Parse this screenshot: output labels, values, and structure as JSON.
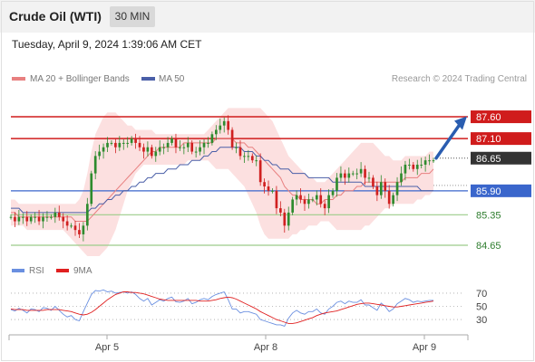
{
  "header": {
    "title": "Crude Oil (WTI)",
    "timeframe": "30 MIN",
    "datetime": "Tuesday, April 9, 2024 1:39:06 AM CET"
  },
  "legend": {
    "ma20_label": "MA 20 + Bollinger Bands",
    "ma50_label": "MA 50",
    "source": "Research © 2024 Trading Central",
    "rsi_label": "RSI",
    "ma9_label": "9MA"
  },
  "colors": {
    "resistance": "#d01c1c",
    "support_strong": "#3a66cc",
    "support": "#9ccc8a",
    "current": "#333333",
    "ma20": "#e88080",
    "ma50": "#4a5fa8",
    "bollinger_fill": "#fbd5d5",
    "rsi": "#6a8fe0",
    "rsi_ma": "#e02020",
    "up_candle": "#2e8b2e",
    "down_candle": "#d02020",
    "arrow": "#2a5db0"
  },
  "chart_data": {
    "type": "candlestick",
    "ylim": [
      84.4,
      88.1
    ],
    "x_ticks": [
      "Apr 5",
      "Apr 8",
      "Apr 9"
    ],
    "levels": [
      {
        "value": 87.6,
        "label": "87.60",
        "kind": "resistance"
      },
      {
        "value": 87.1,
        "label": "87.10",
        "kind": "resistance"
      },
      {
        "value": 86.65,
        "label": "86.65",
        "kind": "current"
      },
      {
        "value": 85.9,
        "label": "85.90",
        "kind": "support_strong"
      },
      {
        "value": 85.35,
        "label": "85.35",
        "kind": "support"
      },
      {
        "value": 84.65,
        "label": "84.65",
        "kind": "support"
      }
    ],
    "close": [
      85.3,
      85.2,
      85.3,
      85.3,
      85.2,
      85.3,
      85.3,
      85.2,
      85.3,
      85.3,
      85.3,
      85.4,
      85.3,
      85.2,
      85.1,
      85.1,
      85.0,
      84.9,
      85.1,
      85.6,
      86.3,
      86.7,
      86.8,
      86.9,
      87.0,
      87.0,
      86.9,
      87.0,
      87.0,
      87.0,
      87.1,
      87.0,
      86.9,
      86.8,
      86.9,
      86.7,
      86.8,
      86.9,
      86.9,
      87.0,
      87.1,
      86.9,
      86.9,
      86.9,
      87.0,
      86.8,
      86.8,
      86.9,
      87.0,
      87.0,
      87.2,
      87.3,
      87.4,
      87.5,
      87.3,
      86.9,
      86.9,
      86.7,
      86.7,
      86.7,
      86.6,
      86.6,
      86.1,
      86.0,
      85.9,
      85.9,
      85.5,
      85.4,
      85.1,
      85.4,
      85.7,
      85.8,
      85.7,
      85.6,
      85.7,
      85.7,
      85.8,
      85.6,
      85.5,
      85.8,
      85.9,
      86.2,
      86.3,
      86.2,
      86.3,
      86.3,
      86.3,
      86.4,
      86.2,
      86.2,
      86.0,
      85.8,
      86.1,
      85.9,
      85.6,
      85.8,
      86.1,
      86.3,
      86.5,
      86.5,
      86.4,
      86.5,
      86.5,
      86.6,
      86.6,
      86.6
    ],
    "ma20": [
      85.4,
      85.4,
      85.3,
      85.3,
      85.3,
      85.3,
      85.3,
      85.3,
      85.3,
      85.3,
      85.3,
      85.3,
      85.3,
      85.3,
      85.3,
      85.3,
      85.2,
      85.2,
      85.2,
      85.2,
      85.3,
      85.4,
      85.5,
      85.6,
      85.7,
      85.8,
      85.9,
      86.0,
      86.1,
      86.2,
      86.3,
      86.4,
      86.5,
      86.6,
      86.7,
      86.8,
      86.8,
      86.9,
      86.9,
      86.9,
      86.9,
      86.9,
      86.9,
      87.0,
      87.0,
      87.0,
      87.0,
      87.0,
      87.0,
      87.0,
      87.0,
      87.1,
      87.1,
      87.1,
      87.1,
      87.1,
      87.0,
      87.0,
      87.0,
      86.9,
      86.9,
      86.8,
      86.7,
      86.6,
      86.5,
      86.4,
      86.3,
      86.2,
      86.0,
      85.9,
      85.8,
      85.8,
      85.7,
      85.7,
      85.7,
      85.7,
      85.6,
      85.6,
      85.7,
      85.7,
      85.7,
      85.8,
      85.8,
      85.9,
      85.9,
      85.9,
      86.0,
      86.0,
      86.1,
      86.1,
      86.1,
      86.1,
      86.1,
      86.1,
      86.1,
      86.1,
      86.1,
      86.1,
      86.2,
      86.2,
      86.2,
      86.2,
      86.3,
      86.3,
      86.3,
      86.4
    ],
    "ma50": [
      85.5,
      85.5,
      85.5,
      85.4,
      85.4,
      85.4,
      85.4,
      85.4,
      85.4,
      85.4,
      85.4,
      85.4,
      85.4,
      85.4,
      85.4,
      85.4,
      85.4,
      85.4,
      85.4,
      85.4,
      85.5,
      85.5,
      85.6,
      85.6,
      85.7,
      85.7,
      85.8,
      85.8,
      85.9,
      85.9,
      86.0,
      86.0,
      86.1,
      86.1,
      86.2,
      86.2,
      86.3,
      86.3,
      86.3,
      86.4,
      86.4,
      86.4,
      86.5,
      86.5,
      86.5,
      86.6,
      86.6,
      86.6,
      86.7,
      86.7,
      86.8,
      86.8,
      86.9,
      86.9,
      86.9,
      86.9,
      86.9,
      86.9,
      86.8,
      86.8,
      86.8,
      86.7,
      86.7,
      86.6,
      86.6,
      86.5,
      86.5,
      86.4,
      86.4,
      86.4,
      86.3,
      86.3,
      86.3,
      86.3,
      86.2,
      86.2,
      86.2,
      86.2,
      86.2,
      86.2,
      86.1,
      86.1,
      86.1,
      86.1,
      86.1,
      86.1,
      86.1,
      86.1,
      86.0,
      86.0,
      86.0,
      86.0,
      86.0,
      86.0,
      86.0,
      86.0,
      86.0,
      86.0,
      86.0,
      86.0,
      86.0,
      86.0,
      85.9,
      85.9,
      85.9,
      85.9
    ],
    "bb_upper": [
      85.7,
      85.7,
      85.6,
      85.6,
      85.6,
      85.6,
      85.6,
      85.6,
      85.6,
      85.6,
      85.6,
      85.6,
      85.6,
      85.6,
      85.6,
      85.6,
      85.6,
      85.7,
      85.9,
      86.3,
      86.8,
      87.2,
      87.4,
      87.6,
      87.7,
      87.7,
      87.7,
      87.6,
      87.5,
      87.4,
      87.4,
      87.3,
      87.3,
      87.3,
      87.3,
      87.3,
      87.2,
      87.2,
      87.2,
      87.2,
      87.2,
      87.2,
      87.2,
      87.2,
      87.2,
      87.2,
      87.2,
      87.2,
      87.2,
      87.3,
      87.4,
      87.5,
      87.6,
      87.7,
      87.8,
      87.8,
      87.8,
      87.8,
      87.8,
      87.8,
      87.8,
      87.8,
      87.8,
      87.7,
      87.6,
      87.5,
      87.3,
      87.1,
      86.9,
      86.7,
      86.6,
      86.5,
      86.4,
      86.3,
      86.2,
      86.2,
      86.1,
      86.1,
      86.1,
      86.2,
      86.3,
      86.4,
      86.5,
      86.6,
      86.7,
      86.8,
      86.9,
      87.0,
      87.0,
      87.0,
      87.0,
      86.9,
      86.8,
      86.7,
      86.7,
      86.6,
      86.6,
      86.6,
      86.7,
      86.7,
      86.7,
      86.7,
      86.7,
      86.7,
      86.8,
      86.8
    ],
    "bb_lower": [
      85.1,
      85.1,
      85.1,
      85.1,
      85.0,
      85.0,
      85.0,
      85.0,
      85.0,
      85.0,
      85.0,
      85.0,
      85.0,
      85.0,
      84.9,
      84.8,
      84.7,
      84.6,
      84.5,
      84.4,
      84.4,
      84.4,
      84.4,
      84.5,
      84.6,
      84.8,
      85.0,
      85.3,
      85.6,
      85.9,
      86.1,
      86.3,
      86.4,
      86.5,
      86.5,
      86.5,
      86.5,
      86.5,
      86.5,
      86.5,
      86.5,
      86.5,
      86.5,
      86.5,
      86.6,
      86.6,
      86.6,
      86.6,
      86.6,
      86.6,
      86.5,
      86.4,
      86.4,
      86.4,
      86.4,
      86.3,
      86.2,
      86.1,
      86.0,
      85.8,
      85.6,
      85.4,
      85.1,
      84.9,
      84.8,
      84.8,
      84.8,
      84.8,
      84.8,
      84.8,
      84.9,
      84.9,
      85.0,
      85.0,
      85.1,
      85.1,
      85.1,
      85.2,
      85.2,
      85.2,
      85.1,
      85.0,
      85.0,
      85.0,
      85.0,
      85.0,
      85.0,
      85.0,
      85.1,
      85.1,
      85.2,
      85.3,
      85.4,
      85.5,
      85.5,
      85.6,
      85.6,
      85.6,
      85.6,
      85.6,
      85.6,
      85.7,
      85.7,
      85.8,
      85.8,
      85.9
    ],
    "rsi": {
      "ylim": [
        15,
        85
      ],
      "levels": [
        70,
        50,
        30
      ],
      "values": [
        45,
        43,
        47,
        44,
        40,
        46,
        45,
        42,
        48,
        47,
        44,
        50,
        44,
        38,
        34,
        36,
        30,
        28,
        42,
        55,
        68,
        74,
        73,
        75,
        72,
        73,
        70,
        71,
        72,
        70,
        72,
        68,
        62,
        58,
        62,
        52,
        56,
        60,
        58,
        62,
        64,
        57,
        56,
        58,
        62,
        54,
        56,
        60,
        62,
        60,
        65,
        68,
        70,
        72,
        60,
        46,
        46,
        40,
        42,
        42,
        40,
        38,
        30,
        28,
        26,
        24,
        22,
        22,
        20,
        32,
        40,
        44,
        40,
        38,
        42,
        42,
        46,
        40,
        38,
        46,
        50,
        56,
        58,
        54,
        58,
        56,
        56,
        60,
        52,
        52,
        48,
        44,
        55,
        50,
        42,
        46,
        54,
        58,
        62,
        60,
        56,
        58,
        57,
        58,
        59,
        59
      ],
      "ma9": [
        46,
        45,
        45,
        45,
        44,
        44,
        44,
        44,
        44,
        45,
        45,
        45,
        45,
        44,
        43,
        42,
        40,
        38,
        37,
        38,
        41,
        45,
        50,
        55,
        60,
        64,
        68,
        70,
        72,
        72,
        71,
        71,
        70,
        69,
        67,
        65,
        63,
        61,
        60,
        59,
        59,
        59,
        59,
        59,
        59,
        59,
        59,
        58,
        58,
        58,
        59,
        60,
        62,
        63,
        64,
        63,
        61,
        58,
        55,
        52,
        49,
        46,
        42,
        39,
        36,
        33,
        30,
        28,
        26,
        24,
        24,
        25,
        27,
        29,
        31,
        33,
        36,
        38,
        40,
        41,
        42,
        43,
        45,
        47,
        49,
        51,
        53,
        54,
        55,
        55,
        54,
        53,
        52,
        51,
        50,
        49,
        49,
        50,
        51,
        52,
        53,
        54,
        55,
        56,
        57,
        58
      ]
    }
  }
}
